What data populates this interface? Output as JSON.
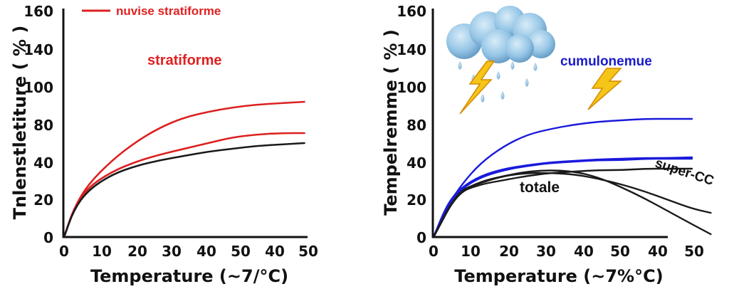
{
  "chart_data": [
    {
      "type": "line",
      "xlabel": "Temperature (~7/°C)",
      "ylabel": "Tnlenstletiture ( % )",
      "x_ticks": [
        "0",
        "10",
        "20",
        "30",
        "40",
        "50",
        "40",
        "50"
      ],
      "y_ticks": [
        "0",
        "20",
        "40",
        "80",
        "80",
        "100",
        "140",
        "160"
      ],
      "legend_label": "nuvise stratiforme",
      "annotations": [
        {
          "text": "stratiforme",
          "color": "#e02020"
        }
      ],
      "series": [
        {
          "color": "#dd2020",
          "x": [
            0,
            2,
            5,
            10,
            15,
            20,
            25,
            30,
            35,
            40,
            45,
            50
          ],
          "y": [
            0,
            20,
            37,
            54,
            67,
            77,
            84,
            88,
            91,
            93,
            94,
            95
          ]
        },
        {
          "color": "#dd2020",
          "x": [
            0,
            2,
            5,
            10,
            15,
            20,
            25,
            30,
            35,
            40,
            45,
            50
          ],
          "y": [
            0,
            20,
            35,
            46,
            53,
            58,
            62,
            66,
            70,
            72,
            73,
            73
          ]
        },
        {
          "color": "#1a1a1a",
          "x": [
            0,
            2,
            5,
            10,
            15,
            20,
            25,
            30,
            35,
            40,
            45,
            50
          ],
          "y": [
            0,
            19,
            33,
            44,
            50,
            54,
            57,
            60,
            62,
            64,
            65,
            66
          ]
        }
      ]
    },
    {
      "type": "line",
      "xlabel": "Temperature (~7%°C)",
      "ylabel": "Tempelremme ( % )",
      "x_ticks": [
        "0",
        "10",
        "20",
        "30",
        "40",
        "50",
        "40",
        "50"
      ],
      "y_ticks": [
        "0",
        "20",
        "40",
        "80",
        "80",
        "100",
        "140",
        "160"
      ],
      "annotations": [
        {
          "text": "cumulonemue",
          "color": "#1a1acc"
        },
        {
          "text": "totale",
          "color": "#111111"
        },
        {
          "text": "super-CC",
          "color": "#111111"
        }
      ],
      "icons": [
        "rain-cloud-icon",
        "lightning-bolt-icon",
        "lightning-bolt-icon"
      ],
      "series": [
        {
          "color": "#1a1adc",
          "x": [
            0,
            3,
            6,
            10,
            15,
            20,
            25,
            30,
            35,
            40,
            45,
            50,
            55
          ],
          "y": [
            0,
            22,
            37,
            52,
            64,
            72,
            76,
            79,
            81,
            82,
            83,
            83,
            83
          ]
        },
        {
          "color": "#1a1adc",
          "x": [
            0,
            3,
            6,
            10,
            15,
            20,
            25,
            30,
            35,
            40,
            45,
            50,
            55
          ],
          "y": [
            0,
            23,
            34,
            42,
            47,
            50,
            52,
            53,
            54,
            54,
            55,
            55,
            55
          ]
        },
        {
          "color": "#1a1adc",
          "x": [
            0,
            3,
            6,
            10,
            15,
            20,
            25,
            30,
            35,
            40,
            45,
            50,
            55
          ],
          "y": [
            0,
            24,
            35,
            43,
            48,
            50.5,
            52.5,
            53.5,
            54.5,
            55,
            55.5,
            55.5,
            56
          ]
        },
        {
          "color": "#1a1a1a",
          "x": [
            0,
            5,
            10,
            15,
            20,
            25,
            30,
            35,
            40,
            45,
            50,
            55
          ],
          "y": [
            0,
            31,
            37,
            40,
            43,
            45,
            46,
            47,
            47,
            48,
            48,
            48
          ]
        },
        {
          "color": "#1a1a1a",
          "x": [
            0,
            5,
            10,
            15,
            20,
            25,
            30,
            35,
            40,
            45,
            50,
            55,
            59
          ],
          "y": [
            0,
            32,
            38,
            43,
            45,
            45,
            44,
            41,
            37,
            32,
            26,
            20,
            17
          ]
        },
        {
          "color": "#1a1a1a",
          "x": [
            0,
            5,
            10,
            15,
            20,
            25,
            30,
            35,
            40,
            45,
            50,
            55,
            59
          ],
          "y": [
            0,
            31,
            39,
            43,
            46,
            47,
            46,
            42,
            35,
            27,
            18,
            9,
            2
          ]
        }
      ]
    }
  ]
}
